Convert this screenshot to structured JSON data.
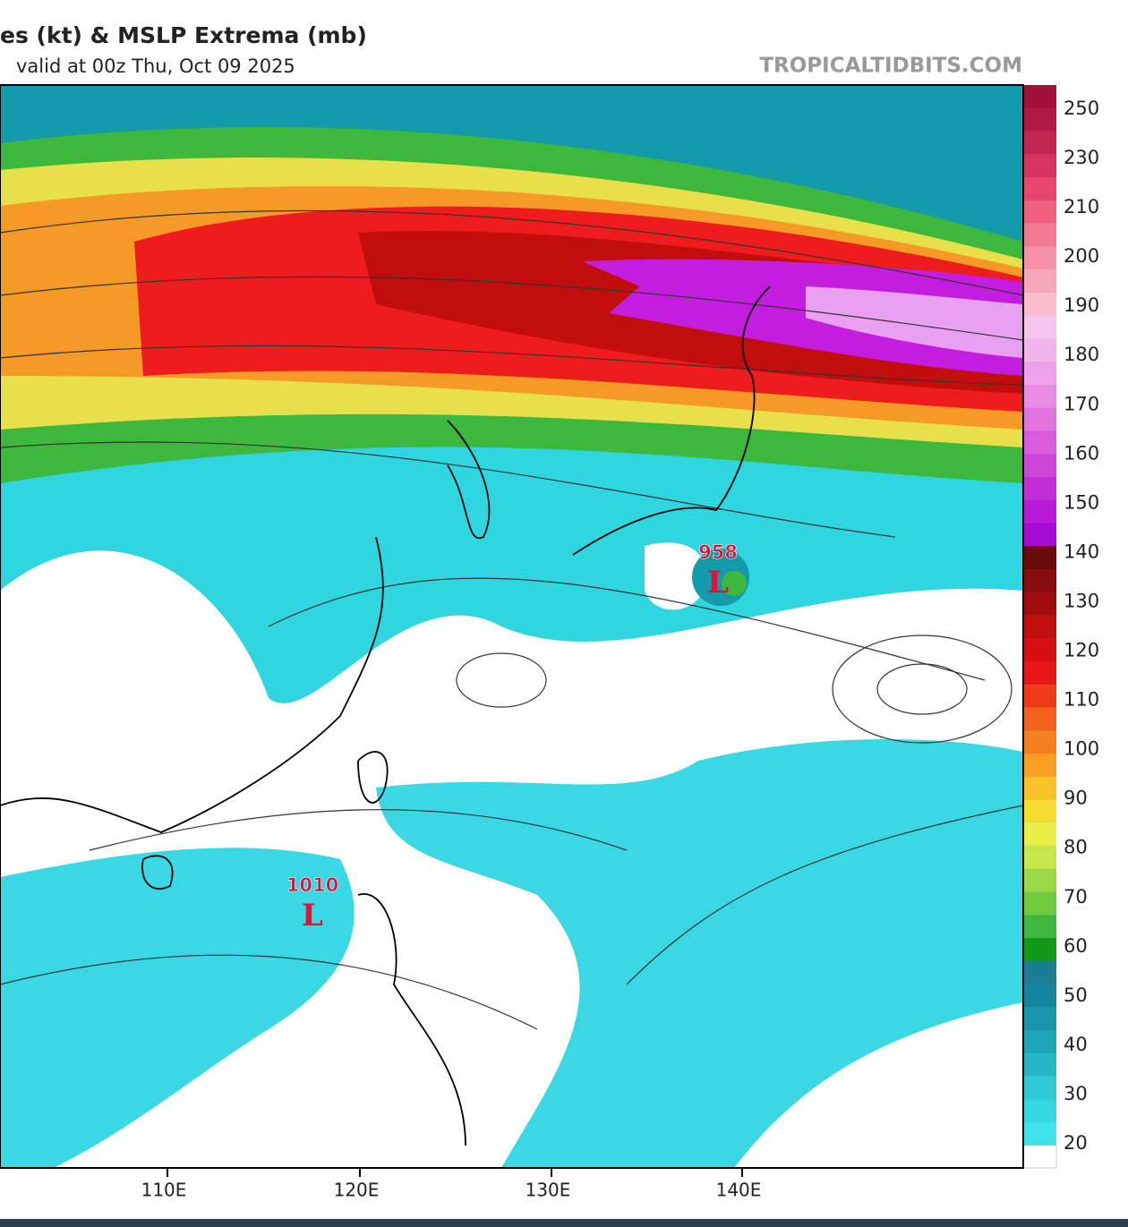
{
  "header": {
    "title": "es (kt) & MSLP Extrema (mb)",
    "subtitle": "valid at 00z Thu, Oct 09 2025",
    "watermark": "TROPICALTIDBITS.COM"
  },
  "colorbar": {
    "labels": [
      250,
      230,
      210,
      200,
      190,
      180,
      170,
      160,
      150,
      140,
      130,
      120,
      110,
      100,
      90,
      80,
      70,
      60,
      50,
      40,
      30,
      20
    ]
  },
  "longitudes": [
    "110E",
    "120E",
    "130E",
    "140E"
  ],
  "lows": [
    {
      "pressure": "958",
      "symbol": "L"
    },
    {
      "pressure": "1010",
      "symbol": "L"
    }
  ]
}
